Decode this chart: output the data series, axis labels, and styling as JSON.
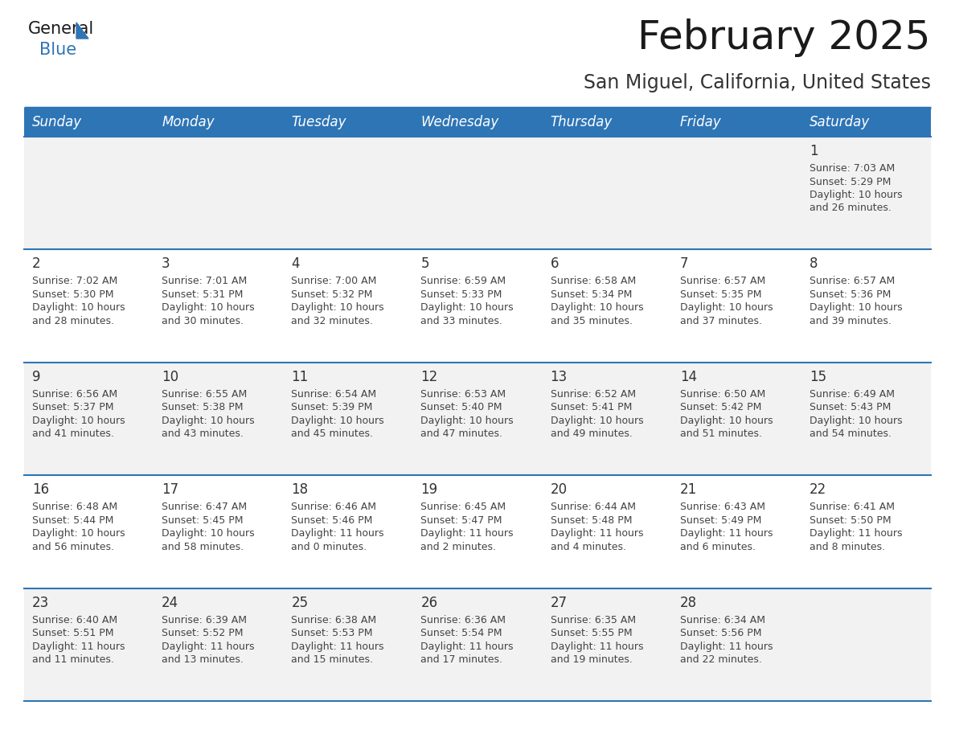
{
  "title": "February 2025",
  "subtitle": "San Miguel, California, United States",
  "days_of_week": [
    "Sunday",
    "Monday",
    "Tuesday",
    "Wednesday",
    "Thursday",
    "Friday",
    "Saturday"
  ],
  "header_bg": "#2E75B6",
  "header_text_color": "#FFFFFF",
  "row_bg_even": "#F2F2F2",
  "row_bg_odd": "#FFFFFF",
  "separator_color": "#2E75B6",
  "text_color": "#444444",
  "day_number_color": "#333333",
  "calendar_data": [
    [
      null,
      null,
      null,
      null,
      null,
      null,
      {
        "day": 1,
        "sunrise": "7:03 AM",
        "sunset": "5:29 PM",
        "daylight": "10 hours and 26 minutes."
      }
    ],
    [
      {
        "day": 2,
        "sunrise": "7:02 AM",
        "sunset": "5:30 PM",
        "daylight": "10 hours and 28 minutes."
      },
      {
        "day": 3,
        "sunrise": "7:01 AM",
        "sunset": "5:31 PM",
        "daylight": "10 hours and 30 minutes."
      },
      {
        "day": 4,
        "sunrise": "7:00 AM",
        "sunset": "5:32 PM",
        "daylight": "10 hours and 32 minutes."
      },
      {
        "day": 5,
        "sunrise": "6:59 AM",
        "sunset": "5:33 PM",
        "daylight": "10 hours and 33 minutes."
      },
      {
        "day": 6,
        "sunrise": "6:58 AM",
        "sunset": "5:34 PM",
        "daylight": "10 hours and 35 minutes."
      },
      {
        "day": 7,
        "sunrise": "6:57 AM",
        "sunset": "5:35 PM",
        "daylight": "10 hours and 37 minutes."
      },
      {
        "day": 8,
        "sunrise": "6:57 AM",
        "sunset": "5:36 PM",
        "daylight": "10 hours and 39 minutes."
      }
    ],
    [
      {
        "day": 9,
        "sunrise": "6:56 AM",
        "sunset": "5:37 PM",
        "daylight": "10 hours and 41 minutes."
      },
      {
        "day": 10,
        "sunrise": "6:55 AM",
        "sunset": "5:38 PM",
        "daylight": "10 hours and 43 minutes."
      },
      {
        "day": 11,
        "sunrise": "6:54 AM",
        "sunset": "5:39 PM",
        "daylight": "10 hours and 45 minutes."
      },
      {
        "day": 12,
        "sunrise": "6:53 AM",
        "sunset": "5:40 PM",
        "daylight": "10 hours and 47 minutes."
      },
      {
        "day": 13,
        "sunrise": "6:52 AM",
        "sunset": "5:41 PM",
        "daylight": "10 hours and 49 minutes."
      },
      {
        "day": 14,
        "sunrise": "6:50 AM",
        "sunset": "5:42 PM",
        "daylight": "10 hours and 51 minutes."
      },
      {
        "day": 15,
        "sunrise": "6:49 AM",
        "sunset": "5:43 PM",
        "daylight": "10 hours and 54 minutes."
      }
    ],
    [
      {
        "day": 16,
        "sunrise": "6:48 AM",
        "sunset": "5:44 PM",
        "daylight": "10 hours and 56 minutes."
      },
      {
        "day": 17,
        "sunrise": "6:47 AM",
        "sunset": "5:45 PM",
        "daylight": "10 hours and 58 minutes."
      },
      {
        "day": 18,
        "sunrise": "6:46 AM",
        "sunset": "5:46 PM",
        "daylight": "11 hours and 0 minutes."
      },
      {
        "day": 19,
        "sunrise": "6:45 AM",
        "sunset": "5:47 PM",
        "daylight": "11 hours and 2 minutes."
      },
      {
        "day": 20,
        "sunrise": "6:44 AM",
        "sunset": "5:48 PM",
        "daylight": "11 hours and 4 minutes."
      },
      {
        "day": 21,
        "sunrise": "6:43 AM",
        "sunset": "5:49 PM",
        "daylight": "11 hours and 6 minutes."
      },
      {
        "day": 22,
        "sunrise": "6:41 AM",
        "sunset": "5:50 PM",
        "daylight": "11 hours and 8 minutes."
      }
    ],
    [
      {
        "day": 23,
        "sunrise": "6:40 AM",
        "sunset": "5:51 PM",
        "daylight": "11 hours and 11 minutes."
      },
      {
        "day": 24,
        "sunrise": "6:39 AM",
        "sunset": "5:52 PM",
        "daylight": "11 hours and 13 minutes."
      },
      {
        "day": 25,
        "sunrise": "6:38 AM",
        "sunset": "5:53 PM",
        "daylight": "11 hours and 15 minutes."
      },
      {
        "day": 26,
        "sunrise": "6:36 AM",
        "sunset": "5:54 PM",
        "daylight": "11 hours and 17 minutes."
      },
      {
        "day": 27,
        "sunrise": "6:35 AM",
        "sunset": "5:55 PM",
        "daylight": "11 hours and 19 minutes."
      },
      {
        "day": 28,
        "sunrise": "6:34 AM",
        "sunset": "5:56 PM",
        "daylight": "11 hours and 22 minutes."
      },
      null
    ]
  ],
  "logo_text_general": "General",
  "logo_text_blue": "Blue",
  "logo_triangle_color": "#2E75B6",
  "logo_general_color": "#1a1a1a"
}
